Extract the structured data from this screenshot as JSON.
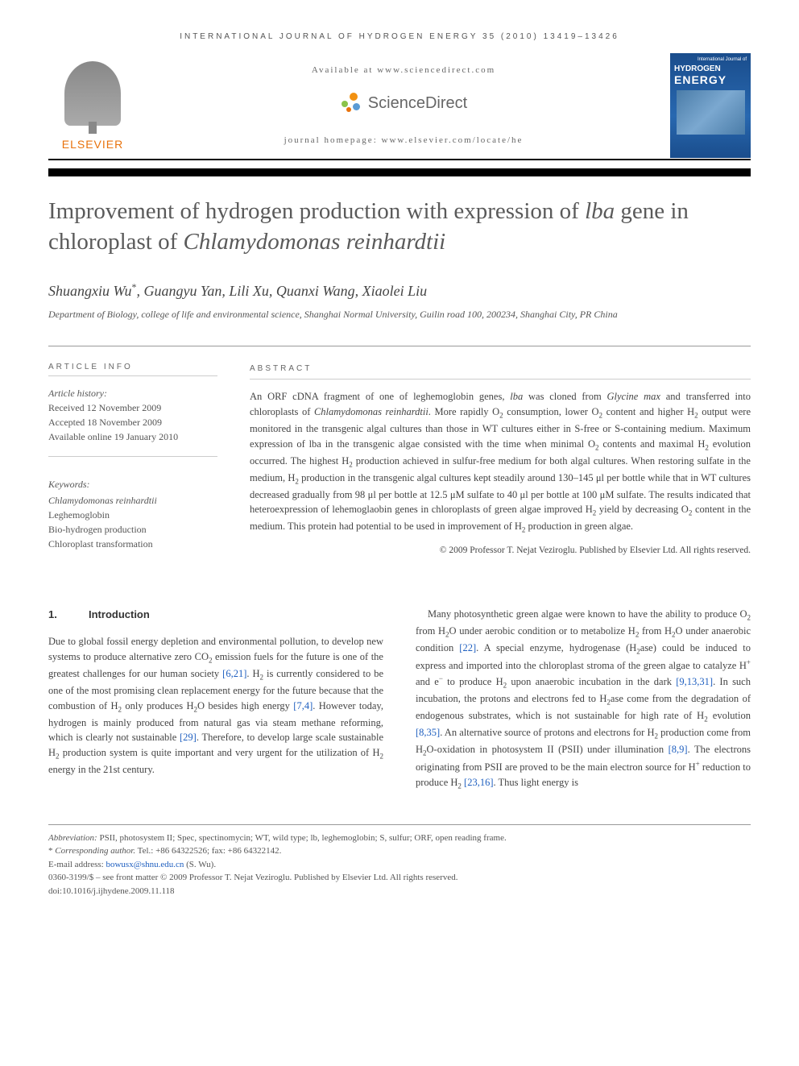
{
  "header": {
    "journal_ref": "INTERNATIONAL JOURNAL OF HYDROGEN ENERGY 35 (2010) 13419–13426",
    "available_at": "Available at www.sciencedirect.com",
    "sd_name": "ScienceDirect",
    "homepage": "journal homepage: www.elsevier.com/locate/he",
    "elsevier": "ELSEVIER",
    "cover_top": "International Journal of",
    "cover_line1": "HYDROGEN",
    "cover_line2": "ENERGY"
  },
  "title_html": "Improvement of hydrogen production with expression of <em>lba</em> gene in chloroplast of <em>Chlamydomonas reinhardtii</em>",
  "authors": "Shuangxiu Wu*, Guangyu Yan, Lili Xu, Quanxi Wang, Xiaolei Liu",
  "affiliation": "Department of Biology, college of life and environmental science, Shanghai Normal University, Guilin road 100, 200234, Shanghai City, PR China",
  "labels": {
    "article_info": "ARTICLE INFO",
    "abstract": "ABSTRACT",
    "history": "Article history:",
    "keywords": "Keywords:"
  },
  "history": {
    "received": "Received 12 November 2009",
    "accepted": "Accepted 18 November 2009",
    "online": "Available online 19 January 2010"
  },
  "keywords": [
    "Chlamydomonas reinhardtii",
    "Leghemoglobin",
    "Bio-hydrogen production",
    "Chloroplast transformation"
  ],
  "abstract_html": "An ORF cDNA fragment of one of leghemoglobin genes, <em>lba</em> was cloned from <em>Glycine max</em> and transferred into chloroplasts of <em>Chlamydomonas reinhardtii</em>. More rapidly O<span class='sub'>2</span> consumption, lower O<span class='sub'>2</span> content and higher H<span class='sub'>2</span> output were monitored in the transgenic algal cultures than those in WT cultures either in S-free or S-containing medium. Maximum expression of lba in the transgenic algae consisted with the time when minimal O<span class='sub'>2</span> contents and maximal H<span class='sub'>2</span> evolution occurred. The highest H<span class='sub'>2</span> production achieved in sulfur-free medium for both algal cultures. When restoring sulfate in the medium, H<span class='sub'>2</span> production in the transgenic algal cultures kept steadily around 130–145 μl per bottle while that in WT cultures decreased gradually from 98 μl per bottle at 12.5 μM sulfate to 40 μl per bottle at 100 μM sulfate. The results indicated that heteroexpression of lehemoglaobin genes in chloroplasts of green algae improved H<span class='sub'>2</span> yield by decreasing O<span class='sub'>2</span> content in the medium. This protein had potential to be used in improvement of H<span class='sub'>2</span> production in green algae.",
  "copyright_abstract": "© 2009 Professor T. Nejat Veziroglu. Published by Elsevier Ltd. All rights reserved.",
  "intro": {
    "heading_num": "1.",
    "heading_text": "Introduction",
    "col1_html": "Due to global fossil energy depletion and environmental pollution, to develop new systems to produce alternative zero CO<span class='sub'>2</span> emission fuels for the future is one of the greatest challenges for our human society <span class='ref'>[6,21]</span>. H<span class='sub'>2</span> is currently considered to be one of the most promising clean replacement energy for the future because that the combustion of H<span class='sub'>2</span> only produces H<span class='sub'>2</span>O besides high energy <span class='ref'>[7,4]</span>. However today, hydrogen is mainly produced from natural gas via steam methane reforming, which is clearly not sustainable <span class='ref'>[29]</span>. Therefore, to develop large scale sustainable H<span class='sub'>2</span> production system is quite important and very urgent for the utilization of H<span class='sub'>2</span> energy in the 21st century.",
    "col2_html": "Many photosynthetic green algae were known to have the ability to produce O<span class='sub'>2</span> from H<span class='sub'>2</span>O under aerobic condition or to metabolize H<span class='sub'>2</span> from H<span class='sub'>2</span>O under anaerobic condition <span class='ref'>[22]</span>. A special enzyme, hydrogenase (H<span class='sub'>2</span>ase) could be induced to express and imported into the chloroplast stroma of the green algae to catalyze H<span class='sup'>+</span> and e<span class='sup'>−</span> to produce H<span class='sub'>2</span> upon anaerobic incubation in the dark <span class='ref'>[9,13,31]</span>. In such incubation, the protons and electrons fed to H<span class='sub'>2</span>ase come from the degradation of endogenous substrates, which is not sustainable for high rate of H<span class='sub'>2</span> evolution <span class='ref'>[8,35]</span>. An alternative source of protons and electrons for H<span class='sub'>2</span> production come from H<span class='sub'>2</span>O-oxidation in photosystem II (PSII) under illumination <span class='ref'>[8,9]</span>. The electrons originating from PSII are proved to be the main electron source for H<span class='sup'>+</span> reduction to produce H<span class='sub'>2</span> <span class='ref'>[23,16]</span>. Thus light energy is"
  },
  "footer": {
    "abbrev_html": "<em>Abbreviation:</em> PSII, photosystem II; Spec, spectinomycin; WT, wild type; lb, leghemoglobin; S, sulfur; ORF, open reading frame.",
    "corr_html": "* <em>Corresponding author.</em> Tel.: +86 64322526; fax: +86 64322142.",
    "email_label": "E-mail address:",
    "email": "bowusx@shnu.edu.cn",
    "email_who": "(S. Wu).",
    "issn_line": "0360-3199/$ – see front matter © 2009 Professor T. Nejat Veziroglu. Published by Elsevier Ltd. All rights reserved.",
    "doi": "doi:10.1016/j.ijhydene.2009.11.118"
  },
  "colors": {
    "elsevier_orange": "#e8720c",
    "ref_blue": "#2060c0",
    "cover_blue": "#1a4d8c",
    "sd_orange": "#f29111",
    "sd_green": "#8bc34a",
    "sd_blue": "#5b9bd5"
  }
}
